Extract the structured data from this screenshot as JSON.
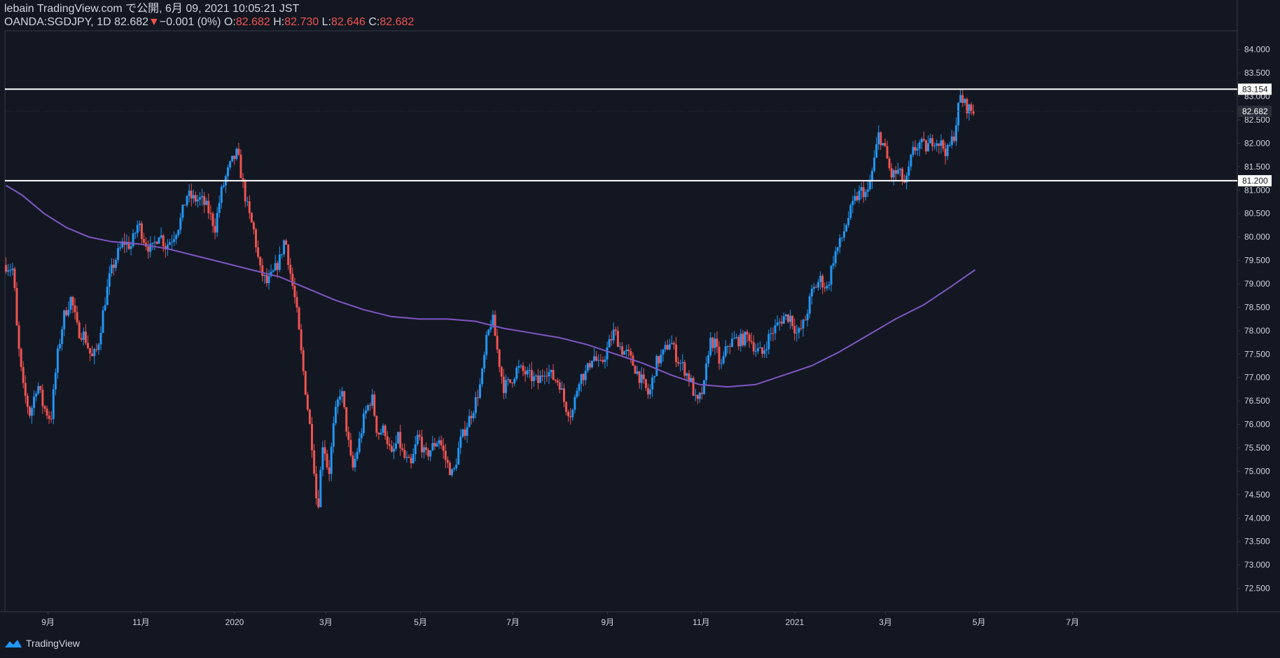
{
  "header": {
    "publisher_line": "lebain TradingView.com で公開, 6月 09, 2021 10:05:21 JST",
    "symbol_interval": "OANDA:SGDJPY, 1D",
    "last_price": "82.682",
    "change_arrow": "▼",
    "change": "−0.001 (0%)",
    "open_label": "O:",
    "open": "82.682",
    "high_label": "H:",
    "high": "82.730",
    "low_label": "L:",
    "low": "82.646",
    "close_label": "C:",
    "close": "82.682"
  },
  "footer": {
    "brand": "TradingView"
  },
  "colors": {
    "background": "#131722",
    "up": "#2196f3",
    "down": "#ef5350",
    "ma": "#7e57c2",
    "hline": "#ffffff",
    "text": "#d1d4dc",
    "axis": "#363a45"
  },
  "chart_data": {
    "type": "candlestick",
    "symbol": "OANDA:SGDJPY",
    "interval": "1D",
    "x_range": [
      2019.59,
      2021.79
    ],
    "ylim": [
      72.0,
      84.4
    ],
    "y_ticks": [
      "84.000",
      "83.500",
      "83.000",
      "82.500",
      "82.000",
      "81.500",
      "81.000",
      "80.500",
      "80.000",
      "79.500",
      "79.000",
      "78.500",
      "78.000",
      "77.500",
      "77.000",
      "76.500",
      "76.000",
      "75.500",
      "75.000",
      "74.500",
      "74.000",
      "73.500",
      "73.000",
      "72.500"
    ],
    "x_ticks": [
      {
        "label": "9月",
        "t": 2019.667
      },
      {
        "label": "11月",
        "t": 2019.833
      },
      {
        "label": "2020",
        "t": 2020.0
      },
      {
        "label": "3月",
        "t": 2020.163
      },
      {
        "label": "5月",
        "t": 2020.332
      },
      {
        "label": "7月",
        "t": 2020.497
      },
      {
        "label": "9月",
        "t": 2020.666
      },
      {
        "label": "11月",
        "t": 2020.833
      },
      {
        "label": "2021",
        "t": 2021.0
      },
      {
        "label": "3月",
        "t": 2021.162
      },
      {
        "label": "5月",
        "t": 2021.329
      },
      {
        "label": "7月",
        "t": 2021.496
      }
    ],
    "close_path": [
      [
        2019.592,
        79.4
      ],
      [
        2019.605,
        79.3
      ],
      [
        2019.612,
        77.9
      ],
      [
        2019.622,
        76.8
      ],
      [
        2019.635,
        76.2
      ],
      [
        2019.648,
        76.9
      ],
      [
        2019.658,
        76.4
      ],
      [
        2019.672,
        76.1
      ],
      [
        2019.683,
        77.4
      ],
      [
        2019.695,
        78.3
      ],
      [
        2019.708,
        78.7
      ],
      [
        2019.72,
        78.0
      ],
      [
        2019.732,
        77.9
      ],
      [
        2019.745,
        77.4
      ],
      [
        2019.755,
        77.6
      ],
      [
        2019.768,
        78.6
      ],
      [
        2019.778,
        79.2
      ],
      [
        2019.79,
        79.6
      ],
      [
        2019.802,
        79.9
      ],
      [
        2019.815,
        79.8
      ],
      [
        2019.828,
        80.3
      ],
      [
        2019.84,
        79.9
      ],
      [
        2019.852,
        79.7
      ],
      [
        2019.865,
        80.1
      ],
      [
        2019.877,
        79.8
      ],
      [
        2019.89,
        80.0
      ],
      [
        2019.902,
        80.3
      ],
      [
        2019.915,
        80.9
      ],
      [
        2019.928,
        80.8
      ],
      [
        2019.94,
        80.8
      ],
      [
        2019.952,
        80.6
      ],
      [
        2019.965,
        80.2
      ],
      [
        2019.975,
        80.9
      ],
      [
        2019.985,
        81.3
      ],
      [
        2019.995,
        81.6
      ],
      [
        2020.005,
        81.8
      ],
      [
        2020.015,
        81.1
      ],
      [
        2020.025,
        80.5
      ],
      [
        2020.035,
        80.1
      ],
      [
        2020.045,
        79.3
      ],
      [
        2020.058,
        79.0
      ],
      [
        2020.068,
        79.2
      ],
      [
        2020.08,
        79.5
      ],
      [
        2020.09,
        80.0
      ],
      [
        2020.1,
        79.2
      ],
      [
        2020.11,
        78.5
      ],
      [
        2020.12,
        77.4
      ],
      [
        2020.13,
        76.4
      ],
      [
        2020.14,
        75.4
      ],
      [
        2020.148,
        74.1
      ],
      [
        2020.158,
        75.7
      ],
      [
        2020.168,
        74.9
      ],
      [
        2020.178,
        76.1
      ],
      [
        2020.19,
        76.8
      ],
      [
        2020.2,
        75.9
      ],
      [
        2020.21,
        75.0
      ],
      [
        2020.222,
        75.6
      ],
      [
        2020.232,
        76.2
      ],
      [
        2020.245,
        76.6
      ],
      [
        2020.255,
        75.8
      ],
      [
        2020.268,
        75.9
      ],
      [
        2020.28,
        75.3
      ],
      [
        2020.292,
        75.7
      ],
      [
        2020.302,
        75.3
      ],
      [
        2020.315,
        75.1
      ],
      [
        2020.328,
        75.8
      ],
      [
        2020.34,
        75.3
      ],
      [
        2020.352,
        75.5
      ],
      [
        2020.365,
        75.7
      ],
      [
        2020.378,
        75.2
      ],
      [
        2020.39,
        74.9
      ],
      [
        2020.402,
        75.6
      ],
      [
        2020.415,
        76.0
      ],
      [
        2020.428,
        76.4
      ],
      [
        2020.44,
        76.9
      ],
      [
        2020.45,
        77.8
      ],
      [
        2020.46,
        78.3
      ],
      [
        2020.47,
        77.5
      ],
      [
        2020.48,
        76.8
      ],
      [
        2020.492,
        76.9
      ],
      [
        2020.505,
        77.2
      ],
      [
        2020.518,
        77.1
      ],
      [
        2020.53,
        77.0
      ],
      [
        2020.542,
        76.9
      ],
      [
        2020.555,
        77.2
      ],
      [
        2020.568,
        77.0
      ],
      [
        2020.58,
        76.9
      ],
      [
        2020.59,
        76.4
      ],
      [
        2020.602,
        76.2
      ],
      [
        2020.615,
        77.0
      ],
      [
        2020.628,
        77.1
      ],
      [
        2020.64,
        77.5
      ],
      [
        2020.652,
        77.2
      ],
      [
        2020.665,
        77.6
      ],
      [
        2020.678,
        78.0
      ],
      [
        2020.69,
        77.6
      ],
      [
        2020.702,
        77.5
      ],
      [
        2020.715,
        77.2
      ],
      [
        2020.728,
        76.9
      ],
      [
        2020.74,
        76.6
      ],
      [
        2020.752,
        77.3
      ],
      [
        2020.765,
        77.5
      ],
      [
        2020.778,
        77.8
      ],
      [
        2020.79,
        77.4
      ],
      [
        2020.802,
        77.2
      ],
      [
        2020.815,
        76.9
      ],
      [
        2020.825,
        76.4
      ],
      [
        2020.838,
        76.8
      ],
      [
        2020.848,
        77.8
      ],
      [
        2020.858,
        77.7
      ],
      [
        2020.868,
        77.2
      ],
      [
        2020.88,
        77.7
      ],
      [
        2020.892,
        77.8
      ],
      [
        2020.905,
        77.8
      ],
      [
        2020.918,
        77.9
      ],
      [
        2020.93,
        77.6
      ],
      [
        2020.942,
        77.5
      ],
      [
        2020.955,
        77.9
      ],
      [
        2020.968,
        78.1
      ],
      [
        2020.98,
        78.3
      ],
      [
        2020.992,
        78.3
      ],
      [
        2021.005,
        77.9
      ],
      [
        2021.018,
        78.2
      ],
      [
        2021.03,
        78.8
      ],
      [
        2021.045,
        79.1
      ],
      [
        2021.058,
        78.9
      ],
      [
        2021.07,
        79.6
      ],
      [
        2021.082,
        79.9
      ],
      [
        2021.095,
        80.4
      ],
      [
        2021.108,
        80.8
      ],
      [
        2021.12,
        81.0
      ],
      [
        2021.13,
        80.9
      ],
      [
        2021.14,
        81.5
      ],
      [
        2021.15,
        82.2
      ],
      [
        2021.16,
        81.9
      ],
      [
        2021.172,
        81.3
      ],
      [
        2021.185,
        81.4
      ],
      [
        2021.198,
        81.1
      ],
      [
        2021.21,
        81.8
      ],
      [
        2021.222,
        82.0
      ],
      [
        2021.235,
        81.9
      ],
      [
        2021.248,
        82.1
      ],
      [
        2021.26,
        82.0
      ],
      [
        2021.272,
        81.8
      ],
      [
        2021.285,
        82.2
      ],
      [
        2021.295,
        83.0
      ],
      [
        2021.305,
        82.8
      ],
      [
        2021.315,
        82.7
      ],
      [
        2021.322,
        82.68
      ]
    ],
    "moving_average": [
      [
        2019.592,
        81.1
      ],
      [
        2019.62,
        80.9
      ],
      [
        2019.66,
        80.5
      ],
      [
        2019.7,
        80.2
      ],
      [
        2019.74,
        80.0
      ],
      [
        2019.78,
        79.9
      ],
      [
        2019.83,
        79.85
      ],
      [
        2019.88,
        79.75
      ],
      [
        2019.93,
        79.6
      ],
      [
        2019.98,
        79.45
      ],
      [
        2020.03,
        79.3
      ],
      [
        2020.08,
        79.15
      ],
      [
        2020.13,
        78.9
      ],
      [
        2020.18,
        78.65
      ],
      [
        2020.23,
        78.45
      ],
      [
        2020.28,
        78.3
      ],
      [
        2020.33,
        78.25
      ],
      [
        2020.38,
        78.25
      ],
      [
        2020.43,
        78.2
      ],
      [
        2020.48,
        78.05
      ],
      [
        2020.53,
        77.95
      ],
      [
        2020.58,
        77.85
      ],
      [
        2020.63,
        77.7
      ],
      [
        2020.68,
        77.5
      ],
      [
        2020.73,
        77.3
      ],
      [
        2020.78,
        77.05
      ],
      [
        2020.83,
        76.85
      ],
      [
        2020.88,
        76.8
      ],
      [
        2020.93,
        76.85
      ],
      [
        2020.98,
        77.05
      ],
      [
        2021.03,
        77.25
      ],
      [
        2021.08,
        77.55
      ],
      [
        2021.13,
        77.9
      ],
      [
        2021.18,
        78.25
      ],
      [
        2021.23,
        78.55
      ],
      [
        2021.28,
        78.95
      ],
      [
        2021.322,
        79.3
      ]
    ],
    "horizontal_lines": [
      {
        "value": 83.154,
        "label": "83.154"
      },
      {
        "value": 81.2,
        "label": "81.200"
      }
    ],
    "last_price_label": "82.682",
    "last_price_value": 82.682
  }
}
